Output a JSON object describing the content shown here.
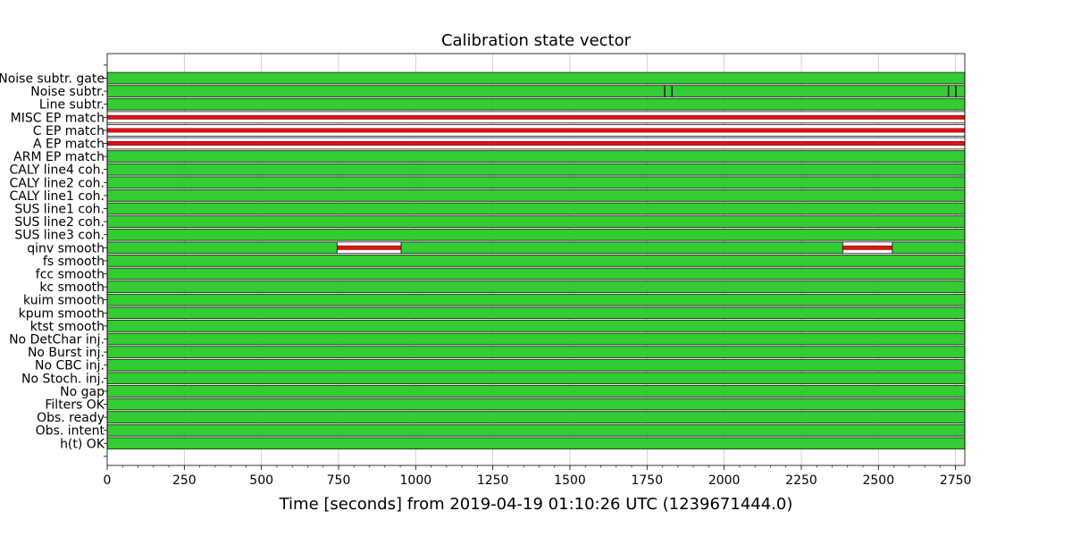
{
  "chart_data": {
    "type": "segments",
    "title": "Calibration state vector",
    "xlabel": "Time [seconds] from 2019-04-19 01:10:26 UTC (1239671444.0)",
    "ylabel": "",
    "xlim": [
      0,
      2780
    ],
    "xticks": [
      0,
      250,
      500,
      750,
      1000,
      1250,
      1500,
      1750,
      2000,
      2250,
      2500,
      2750
    ],
    "grid": true,
    "colors": {
      "active": "#33cc33",
      "inactive": "#dd1111",
      "edge": "#1a1a1a",
      "gap": "#ffffff"
    },
    "rows": [
      {
        "label": "Noise subtr. gate",
        "segments": [
          [
            0,
            2780
          ]
        ],
        "gaps": []
      },
      {
        "label": "Noise subtr.",
        "segments": [
          [
            0,
            1806
          ],
          [
            1808,
            1830
          ],
          [
            1832,
            2726
          ],
          [
            2728,
            2750
          ],
          [
            2752,
            2780
          ]
        ],
        "gaps": []
      },
      {
        "label": "Line subtr.",
        "segments": [
          [
            0,
            2780
          ]
        ],
        "gaps": []
      },
      {
        "label": "MISC EP match",
        "segments": [],
        "gaps": [
          [
            0,
            2780
          ]
        ]
      },
      {
        "label": "C EP match",
        "segments": [],
        "gaps": [
          [
            0,
            2780
          ]
        ]
      },
      {
        "label": "A EP match",
        "segments": [],
        "gaps": [
          [
            0,
            2780
          ]
        ]
      },
      {
        "label": "ARM EP match",
        "segments": [
          [
            0,
            2780
          ]
        ],
        "gaps": []
      },
      {
        "label": "CALY line4 coh.",
        "segments": [
          [
            0,
            2780
          ]
        ],
        "gaps": []
      },
      {
        "label": "CALY line2 coh.",
        "segments": [
          [
            0,
            2780
          ]
        ],
        "gaps": []
      },
      {
        "label": "CALY line1 coh.",
        "segments": [
          [
            0,
            2780
          ]
        ],
        "gaps": []
      },
      {
        "label": "SUS line1 coh.",
        "segments": [
          [
            0,
            2780
          ]
        ],
        "gaps": []
      },
      {
        "label": "SUS line2 coh.",
        "segments": [
          [
            0,
            2780
          ]
        ],
        "gaps": []
      },
      {
        "label": "SUS line3 coh.",
        "segments": [
          [
            0,
            2780
          ]
        ],
        "gaps": []
      },
      {
        "label": "qinv smooth",
        "segments": [
          [
            0,
            745
          ],
          [
            953,
            2384
          ],
          [
            2545,
            2780
          ]
        ],
        "gaps": [
          [
            745,
            953
          ],
          [
            2384,
            2545
          ]
        ]
      },
      {
        "label": "fs smooth",
        "segments": [
          [
            0,
            2780
          ]
        ],
        "gaps": []
      },
      {
        "label": "fcc smooth",
        "segments": [
          [
            0,
            2780
          ]
        ],
        "gaps": []
      },
      {
        "label": "kc smooth",
        "segments": [
          [
            0,
            2780
          ]
        ],
        "gaps": []
      },
      {
        "label": "kuim smooth",
        "segments": [
          [
            0,
            2780
          ]
        ],
        "gaps": []
      },
      {
        "label": "kpum smooth",
        "segments": [
          [
            0,
            2780
          ]
        ],
        "gaps": []
      },
      {
        "label": "ktst smooth",
        "segments": [
          [
            0,
            2780
          ]
        ],
        "gaps": []
      },
      {
        "label": "No DetChar inj.",
        "segments": [
          [
            0,
            2780
          ]
        ],
        "gaps": []
      },
      {
        "label": "No Burst inj.",
        "segments": [
          [
            0,
            2780
          ]
        ],
        "gaps": []
      },
      {
        "label": "No CBC inj.",
        "segments": [
          [
            0,
            2780
          ]
        ],
        "gaps": []
      },
      {
        "label": "No Stoch. inj.",
        "segments": [
          [
            0,
            2780
          ]
        ],
        "gaps": []
      },
      {
        "label": "No gap",
        "segments": [
          [
            0,
            2780
          ]
        ],
        "gaps": []
      },
      {
        "label": "Filters OK",
        "segments": [
          [
            0,
            2780
          ]
        ],
        "gaps": []
      },
      {
        "label": "Obs. ready",
        "segments": [
          [
            0,
            2780
          ]
        ],
        "gaps": []
      },
      {
        "label": "Obs. intent",
        "segments": [
          [
            0,
            2780
          ]
        ],
        "gaps": []
      },
      {
        "label": "h(t) OK",
        "segments": [
          [
            0,
            2780
          ]
        ],
        "gaps": []
      }
    ]
  }
}
